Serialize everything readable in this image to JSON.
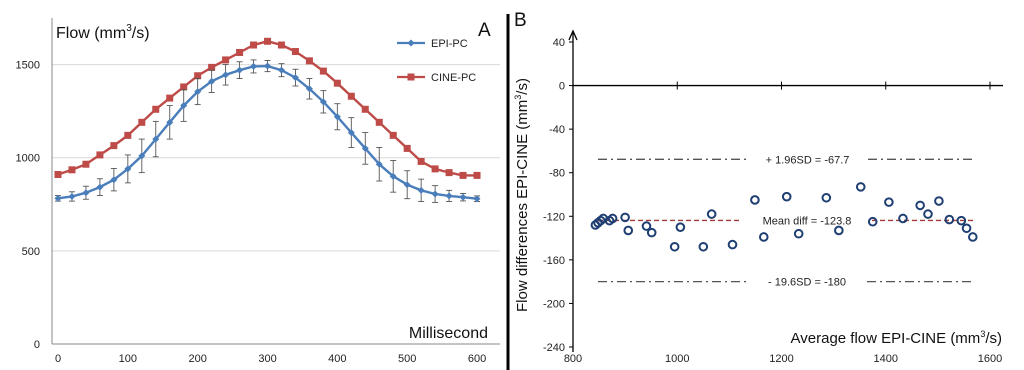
{
  "chart_data": [
    {
      "type": "line",
      "panel_label": "A",
      "title": "",
      "ylabel": "Flow (mm3/s)",
      "ylabel_parts": {
        "before": "Flow (mm",
        "sup": "3",
        "after": "/s)"
      },
      "xlabel": "Millisecond",
      "xlim": [
        0,
        610
      ],
      "ylim": [
        0,
        1750
      ],
      "xticks": [
        0,
        100,
        200,
        300,
        400,
        500,
        600
      ],
      "yticks": [
        0,
        500,
        1000,
        1500
      ],
      "grid": "horizontal",
      "legend_position": "top-right",
      "x": [
        0,
        20,
        40,
        60,
        80,
        100,
        120,
        140,
        160,
        180,
        200,
        220,
        240,
        260,
        280,
        300,
        320,
        340,
        360,
        380,
        400,
        420,
        440,
        460,
        480,
        500,
        520,
        540,
        560,
        580,
        600
      ],
      "series": [
        {
          "name": "EPI-PC",
          "color": "#4a7ebb",
          "marker": "diamond",
          "values": [
            782,
            792,
            812,
            842,
            882,
            940,
            1010,
            1100,
            1190,
            1280,
            1355,
            1410,
            1445,
            1470,
            1490,
            1492,
            1470,
            1430,
            1370,
            1300,
            1220,
            1135,
            1050,
            965,
            900,
            855,
            825,
            805,
            795,
            788,
            780
          ],
          "error": [
            15,
            25,
            35,
            45,
            60,
            75,
            90,
            95,
            90,
            85,
            70,
            60,
            55,
            45,
            35,
            30,
            35,
            45,
            55,
            60,
            70,
            80,
            85,
            90,
            85,
            75,
            60,
            45,
            30,
            20,
            15
          ]
        },
        {
          "name": "CINE-PC",
          "color": "#be4b48",
          "marker": "square",
          "values": [
            910,
            935,
            965,
            1015,
            1065,
            1120,
            1190,
            1260,
            1320,
            1380,
            1440,
            1485,
            1525,
            1565,
            1605,
            1625,
            1605,
            1570,
            1520,
            1465,
            1400,
            1330,
            1260,
            1190,
            1120,
            1050,
            980,
            940,
            920,
            905,
            905
          ]
        }
      ]
    },
    {
      "type": "scatter",
      "panel_label": "B",
      "title": "",
      "xlabel": "Average flow EPI-CINE (mm3/s)",
      "xlabel_parts": {
        "before": "Average flow EPI-CINE (mm",
        "sup": "3",
        "after": "/s)"
      },
      "ylabel": "Flow differences EPI-CINE (mm3/s)",
      "ylabel_parts": {
        "before": "Flow differences EPI-CINE (mm",
        "sup": "3",
        "after": "/s)"
      },
      "xlim": [
        800,
        1600
      ],
      "ylim": [
        -240,
        40
      ],
      "xticks": [
        800,
        1000,
        1200,
        1400,
        1600
      ],
      "yticks": [
        40,
        0,
        -40,
        -80,
        -120,
        -160,
        -200,
        -240
      ],
      "grid": "off",
      "marker_color": "#1f3f73",
      "points": [
        [
          843,
          -128
        ],
        [
          848,
          -126
        ],
        [
          853,
          -124
        ],
        [
          858,
          -122
        ],
        [
          870,
          -124
        ],
        [
          876,
          -122
        ],
        [
          900,
          -121
        ],
        [
          906,
          -133
        ],
        [
          941,
          -129
        ],
        [
          951,
          -135
        ],
        [
          995,
          -148
        ],
        [
          1006,
          -130
        ],
        [
          1050,
          -148
        ],
        [
          1066,
          -118
        ],
        [
          1106,
          -146
        ],
        [
          1149,
          -105
        ],
        [
          1166,
          -139
        ],
        [
          1210,
          -102
        ],
        [
          1233,
          -136
        ],
        [
          1286,
          -103
        ],
        [
          1310,
          -133
        ],
        [
          1352,
          -93
        ],
        [
          1375,
          -125
        ],
        [
          1406,
          -107
        ],
        [
          1433,
          -122
        ],
        [
          1466,
          -110
        ],
        [
          1481,
          -118
        ],
        [
          1502,
          -106
        ],
        [
          1522,
          -123
        ],
        [
          1545,
          -124
        ],
        [
          1555,
          -131
        ],
        [
          1567,
          -139
        ]
      ],
      "reference_lines": [
        {
          "label": "+ 1.96SD = -67.7",
          "value": -67.7,
          "style": "dash-dot",
          "color": "#555555"
        },
        {
          "label": "Mean diff = -123.8",
          "value": -123.8,
          "style": "dashed",
          "color": "#a33a36"
        },
        {
          "label": "- 19.6SD = -180",
          "value": -180,
          "style": "dash-dot",
          "color": "#555555"
        }
      ]
    }
  ]
}
